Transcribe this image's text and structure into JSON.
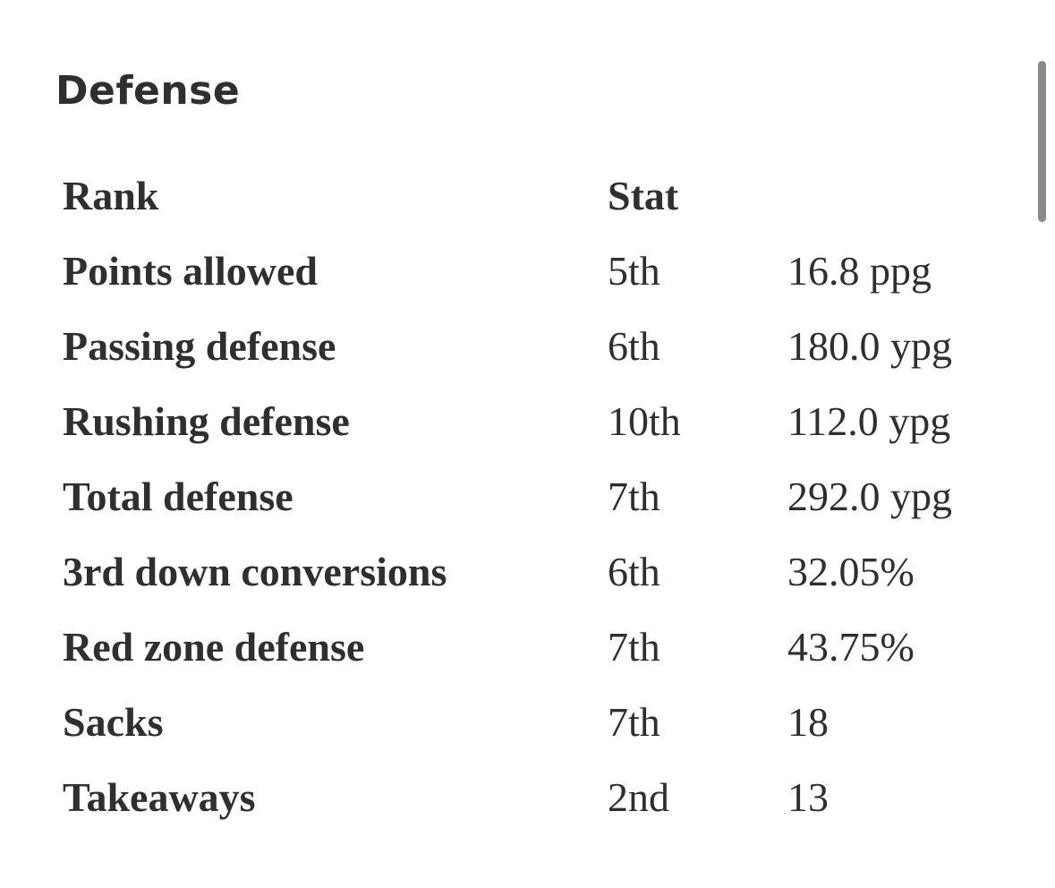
{
  "section": {
    "title": "Defense"
  },
  "table": {
    "headers": {
      "label": "Rank",
      "rank": "Stat",
      "value": ""
    },
    "rows": [
      {
        "label": "Points allowed",
        "rank": "5th",
        "value": "16.8 ppg"
      },
      {
        "label": "Passing defense",
        "rank": "6th",
        "value": "180.0 ypg"
      },
      {
        "label": "Rushing defense",
        "rank": "10th",
        "value": "112.0 ypg"
      },
      {
        "label": "Total defense",
        "rank": "7th",
        "value": "292.0 ypg"
      },
      {
        "label": "3rd down conversions",
        "rank": "6th",
        "value": "32.05%"
      },
      {
        "label": "Red zone defense",
        "rank": "7th",
        "value": "43.75%"
      },
      {
        "label": "Sacks",
        "rank": "7th",
        "value": "18"
      },
      {
        "label": "Takeaways",
        "rank": "2nd",
        "value": "13"
      }
    ]
  },
  "colors": {
    "text": "#2f2f2f",
    "background": "#ffffff",
    "scrollbar": "#8a8a8a"
  }
}
